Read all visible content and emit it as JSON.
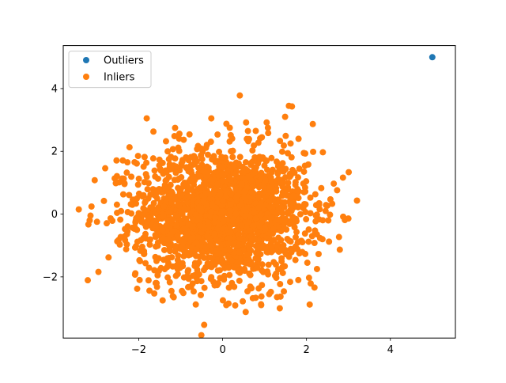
{
  "chart_data": {
    "type": "scatter",
    "title": "",
    "xlabel": "",
    "ylabel": "",
    "xlim": [
      -3.8,
      5.55
    ],
    "ylim": [
      -3.95,
      5.37
    ],
    "xticks": [
      -2,
      0,
      2,
      4
    ],
    "yticks": [
      -2,
      0,
      2,
      4
    ],
    "grid": false,
    "legend_position": "upper-left",
    "series": [
      {
        "name": "Outliers",
        "color": "#1f77b4",
        "x": [
          5.0
        ],
        "y": [
          5.0
        ]
      },
      {
        "name": "Inliers",
        "color": "#ff7f0e",
        "distribution": "bivariate normal, mean 0, std 1",
        "x": [
          -3.43,
          -3.17,
          -3.2,
          -3.15,
          -3.05,
          -2.8,
          -2.83,
          -2.72,
          -2.53,
          -2.52,
          -2.52,
          -2.38,
          -2.34,
          -2.22,
          -2.27,
          -2.3,
          -2.43,
          -2.28,
          -2.03,
          -1.97,
          -1.98,
          -1.86,
          -1.81,
          -1.87,
          -1.63,
          -1.65,
          -1.72,
          -1.55,
          -1.47,
          -1.43,
          -1.35,
          -1.43,
          -1.31,
          -1.28,
          -1.12,
          -1.22,
          -1.03,
          -0.92,
          -0.79,
          -0.64,
          0.41,
          -0.27,
          0.17,
          0.56,
          0.79,
          1.05,
          1.08,
          1.58,
          1.49,
          1.62,
          1.81,
          1.97,
          2.15,
          2.39,
          2.65,
          2.57,
          2.73,
          2.52,
          2.38,
          2.19,
          2.25,
          2.02,
          1.97,
          2.06,
          2.1,
          1.9,
          1.83,
          1.61,
          1.38,
          1.15,
          0.92,
          0.55,
          0.3,
          -0.19,
          -0.52,
          -0.97,
          -1.26,
          -1.31,
          -1.52,
          -0.44,
          0.14,
          0.48,
          0.72,
          0.86,
          1.11,
          1.37,
          2.19,
          2.05,
          1.97,
          2.3,
          1.74
        ],
        "y": [
          0.15,
          -0.2,
          -0.33,
          -0.05,
          1.08,
          1.46,
          0.42,
          -1.38,
          1.71,
          1.21,
          0.3,
          1.71,
          0.96,
          2.13,
          1.65,
          -1.12,
          -0.73,
          -0.64,
          -0.88,
          -1.5,
          -2.1,
          1.82,
          3.05,
          -1.27,
          -2.53,
          2.63,
          0.62,
          -1.95,
          -1.72,
          -2.75,
          2.32,
          1.63,
          2.0,
          1.75,
          -1.67,
          -2.45,
          2.56,
          -2.02,
          2.54,
          -2.88,
          3.78,
          3.05,
          2.75,
          2.92,
          2.65,
          2.92,
          2.75,
          3.45,
          3.1,
          2.25,
          2.4,
          1.93,
          2.87,
          1.97,
          0.97,
          0.47,
          0.76,
          -0.2,
          -0.8,
          -0.92,
          -1.75,
          -1.55,
          -1.27,
          -2.03,
          -2.21,
          -1.21,
          -1.25,
          -2.16,
          -2.63,
          -2.48,
          -2.9,
          -3.12,
          -2.91,
          -2.27,
          -2.58,
          -2.45,
          -2.17,
          -2.02,
          -1.81,
          -3.53,
          -2.85,
          -2.78,
          -2.68,
          -2.37,
          -2.55,
          -2.23,
          -2.34,
          -0.88,
          0.72,
          0.3,
          1.02
        ],
        "note_points_rendered": 2000
      }
    ],
    "legend": {
      "entries": [
        "Outliers",
        "Inliers"
      ]
    }
  }
}
